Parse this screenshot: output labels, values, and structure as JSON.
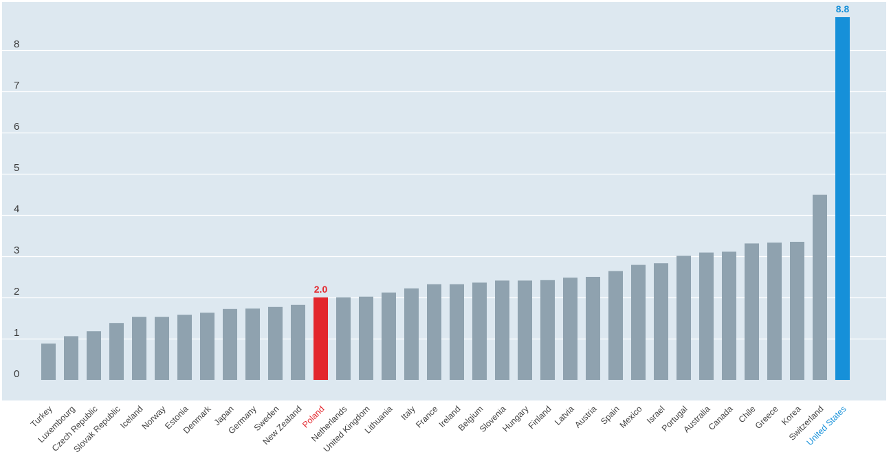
{
  "chart_data": {
    "type": "bar",
    "title": "",
    "xlabel": "",
    "ylabel": "",
    "ylim": [
      0,
      8.8
    ],
    "yticks": [
      0,
      1,
      2,
      3,
      4,
      5,
      6,
      7,
      8
    ],
    "grid": true,
    "categories": [
      "Turkey",
      "Luxembourg",
      "Czech Republic",
      "Slovak Republic",
      "Iceland",
      "Norway",
      "Estonia",
      "Denmark",
      "Japan",
      "Germany",
      "Sweden",
      "New Zealand",
      "Poland",
      "Netherlands",
      "United Kingdom",
      "Lithuania",
      "Italy",
      "France",
      "Ireland",
      "Belgium",
      "Slovenia",
      "Hungary",
      "Finland",
      "Latvia",
      "Austria",
      "Spain",
      "Mexico",
      "Israel",
      "Portugal",
      "Australia",
      "Canada",
      "Chile",
      "Greece",
      "Korea",
      "Switzerland",
      "United States"
    ],
    "values": [
      0.88,
      1.06,
      1.18,
      1.38,
      1.53,
      1.53,
      1.58,
      1.63,
      1.72,
      1.73,
      1.77,
      1.82,
      2.0,
      2.0,
      2.02,
      2.12,
      2.22,
      2.32,
      2.32,
      2.36,
      2.41,
      2.41,
      2.42,
      2.48,
      2.5,
      2.64,
      2.79,
      2.83,
      3.01,
      3.09,
      3.11,
      3.31,
      3.33,
      3.35,
      4.49,
      8.8
    ],
    "highlights": [
      {
        "category": "Poland",
        "label": "2.0",
        "color": "#e3262c"
      },
      {
        "category": "United States",
        "label": "8.8",
        "color": "#1690d9"
      }
    ],
    "colors": {
      "bar": "#8fa2af",
      "background": "#dde8f0",
      "grid": "#ffffff",
      "axis_text": "#3a3a3a",
      "category_text": "#444444"
    }
  }
}
